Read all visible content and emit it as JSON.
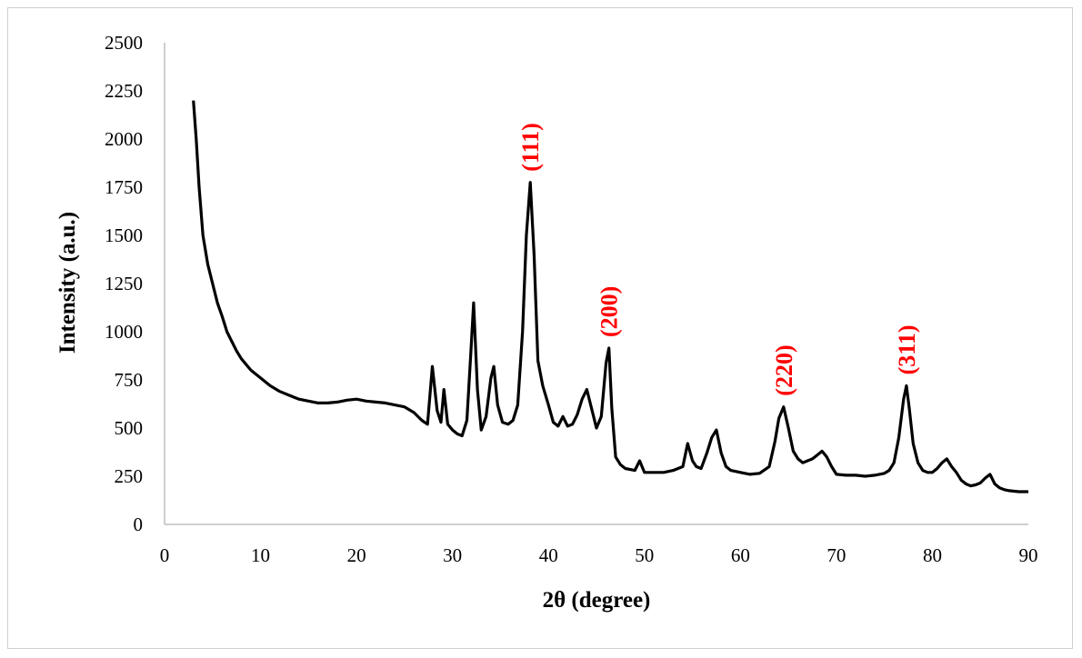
{
  "chart_data": {
    "type": "line",
    "title": "",
    "xlabel": "2θ (degree)",
    "ylabel": "Intensity  (a.u.)",
    "xlim": [
      0,
      90
    ],
    "ylim": [
      0,
      2500
    ],
    "x_ticks": [
      "0",
      "10",
      "20",
      "30",
      "40",
      "50",
      "60",
      "70",
      "80",
      "90"
    ],
    "y_ticks": [
      "0",
      "250",
      "500",
      "750",
      "1000",
      "1250",
      "1500",
      "1750",
      "2000",
      "2250",
      "2500"
    ],
    "grid": false,
    "legend": "none",
    "line_color": "#000000",
    "annotation_color": "#ff0000",
    "annotations": [
      {
        "text": "(111)",
        "x": 38.1,
        "y": 1775
      },
      {
        "text": "(200)",
        "x": 46.3,
        "y": 915
      },
      {
        "text": "(220)",
        "x": 64.5,
        "y": 610
      },
      {
        "text": "(311)",
        "x": 77.3,
        "y": 720
      }
    ],
    "series": [
      {
        "x": [
          3.0,
          3.3,
          3.6,
          4.0,
          4.5,
          5.0,
          5.5,
          6.0,
          6.5,
          7.0,
          7.5,
          8.0,
          9.0,
          10.0,
          11.0,
          12.0,
          13.0,
          14.0,
          15.0,
          16.0,
          17.0,
          18.0,
          19.0,
          20.0,
          21.0,
          22.0,
          23.0,
          24.0,
          25.0,
          26.0,
          26.8,
          27.4,
          27.9,
          28.4,
          28.8,
          29.1,
          29.5,
          30.0,
          30.5,
          31.0,
          31.5,
          31.9,
          32.2,
          32.6,
          33.0,
          33.5,
          34.0,
          34.3,
          34.7,
          35.2,
          35.8,
          36.3,
          36.8,
          37.3,
          37.7,
          38.1,
          38.5,
          38.9,
          39.4,
          40.0,
          40.5,
          41.0,
          41.5,
          42.0,
          42.5,
          43.0,
          43.5,
          44.0,
          44.5,
          45.0,
          45.5,
          46.0,
          46.3,
          46.6,
          47.0,
          47.5,
          48.0,
          49.0,
          49.5,
          50.0,
          51.0,
          52.0,
          53.0,
          54.0,
          54.5,
          55.0,
          55.4,
          55.9,
          56.5,
          57.0,
          57.5,
          58.0,
          58.5,
          59.0,
          60.0,
          61.0,
          62.0,
          63.0,
          63.6,
          64.0,
          64.5,
          65.0,
          65.5,
          66.0,
          66.5,
          67.0,
          67.5,
          68.0,
          68.5,
          69.0,
          69.5,
          70.0,
          71.0,
          72.0,
          73.0,
          74.0,
          75.0,
          75.5,
          76.0,
          76.5,
          77.0,
          77.3,
          77.6,
          78.0,
          78.5,
          79.0,
          79.5,
          80.0,
          80.5,
          81.0,
          81.5,
          82.0,
          82.5,
          83.0,
          83.5,
          84.0,
          84.5,
          85.0,
          85.5,
          86.0,
          86.5,
          87.0,
          87.5,
          88.0,
          89.0,
          90.0
        ],
        "y": [
          2200,
          2000,
          1750,
          1500,
          1350,
          1250,
          1150,
          1080,
          1000,
          950,
          900,
          860,
          800,
          760,
          720,
          690,
          670,
          650,
          640,
          630,
          630,
          635,
          645,
          650,
          640,
          635,
          630,
          620,
          610,
          580,
          540,
          520,
          820,
          590,
          530,
          700,
          520,
          490,
          470,
          460,
          540,
          880,
          1150,
          700,
          490,
          560,
          760,
          820,
          620,
          530,
          520,
          540,
          620,
          1000,
          1500,
          1775,
          1400,
          850,
          720,
          620,
          530,
          510,
          560,
          510,
          520,
          570,
          650,
          700,
          600,
          500,
          560,
          840,
          915,
          600,
          350,
          310,
          290,
          280,
          330,
          270,
          270,
          270,
          280,
          300,
          420,
          330,
          300,
          290,
          370,
          450,
          490,
          370,
          300,
          280,
          270,
          260,
          265,
          300,
          430,
          550,
          610,
          500,
          380,
          340,
          320,
          330,
          340,
          360,
          380,
          350,
          300,
          260,
          255,
          255,
          250,
          255,
          265,
          280,
          320,
          450,
          650,
          720,
          600,
          420,
          320,
          280,
          270,
          270,
          290,
          320,
          340,
          300,
          270,
          230,
          210,
          200,
          205,
          215,
          240,
          260,
          210,
          190,
          180,
          175,
          170,
          170
        ]
      }
    ]
  }
}
